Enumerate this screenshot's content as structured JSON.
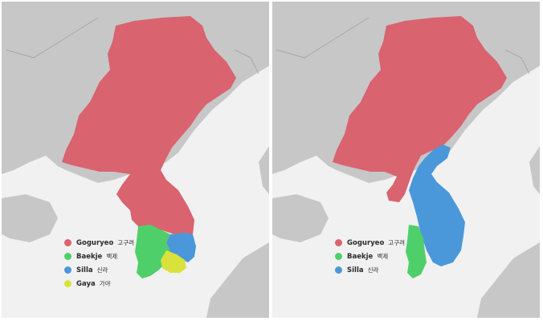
{
  "maps": [
    {
      "legend": [
        {
          "name": "Goguryeo",
          "hangul": "고구려",
          "color": "#d9636f"
        },
        {
          "name": "Baekje",
          "hangul": "백제",
          "color": "#4fcf6a"
        },
        {
          "name": "Silla",
          "hangul": "신라",
          "color": "#4a98d9"
        },
        {
          "name": "Gaya",
          "hangul": "가야",
          "color": "#d9e23a"
        }
      ]
    },
    {
      "legend": [
        {
          "name": "Goguryeo",
          "hangul": "고구려",
          "color": "#d9636f"
        },
        {
          "name": "Baekje",
          "hangul": "백제",
          "color": "#4fcf6a"
        },
        {
          "name": "Silla",
          "hangul": "신라",
          "color": "#4a98d9"
        }
      ]
    }
  ],
  "colors": {
    "land": "#c7c7c7",
    "sea": "#f1f1f1",
    "border": "#8c8c8c"
  }
}
